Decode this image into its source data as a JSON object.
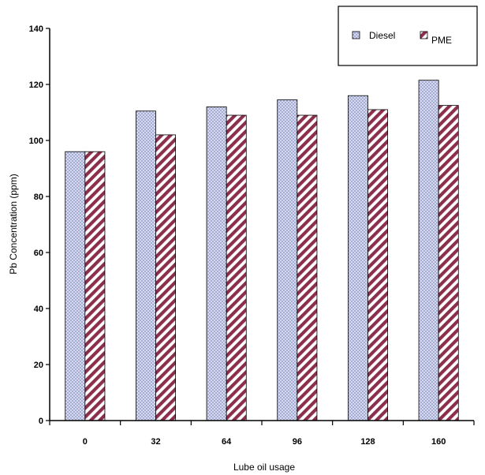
{
  "chart_data": {
    "type": "bar",
    "title": "",
    "xlabel": "Lube oil usage",
    "ylabel": "Pb Concentration (ppm)",
    "categories": [
      "0",
      "32",
      "64",
      "96",
      "128",
      "160"
    ],
    "series": [
      {
        "name": "Diesel",
        "values": [
          96,
          110.5,
          112,
          114.5,
          116,
          121.5
        ],
        "color": "#cfd3ea",
        "pattern": "crosshatch"
      },
      {
        "name": "PME",
        "values": [
          96,
          102,
          109,
          109,
          111,
          112.5
        ],
        "color": "#8b2f4c",
        "pattern": "diagonal-stripes"
      }
    ],
    "ylim": [
      0,
      140
    ],
    "yticks": [
      "0",
      "20",
      "40",
      "60",
      "80",
      "100",
      "120",
      "140"
    ],
    "grid": false,
    "legend": "top-right"
  }
}
